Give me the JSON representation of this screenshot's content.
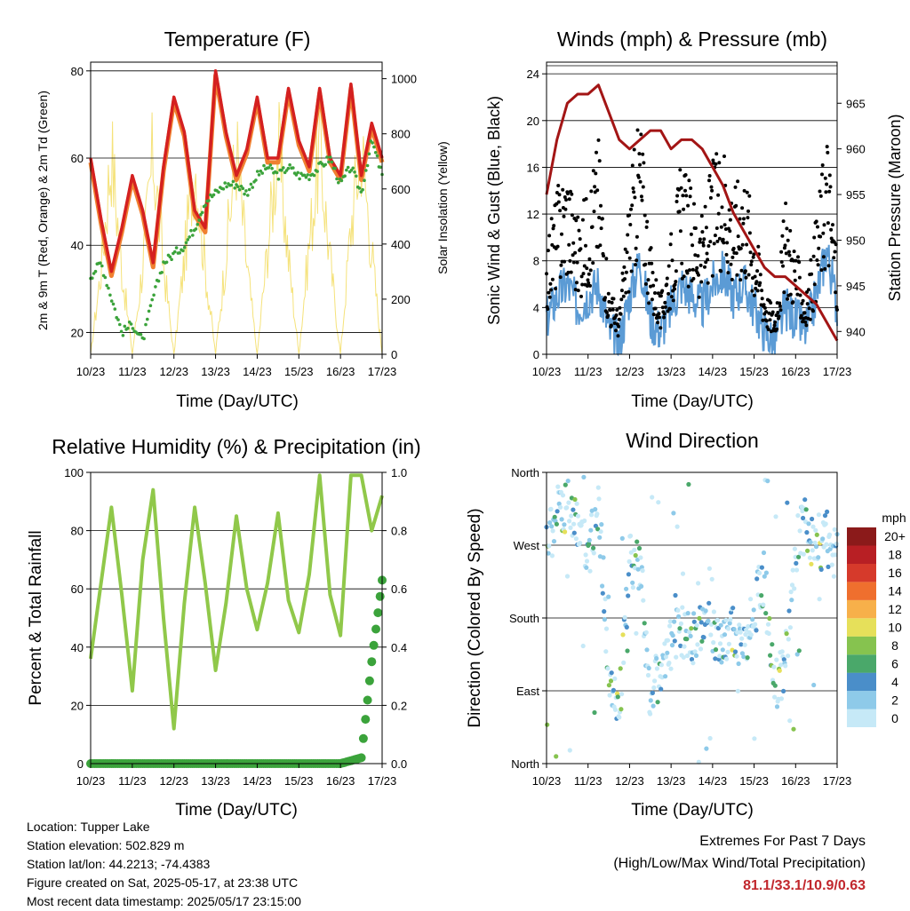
{
  "colors": {
    "t2m": "#d42020",
    "t9m": "#f08030",
    "td": "#3ba33b",
    "solar": "#f5e27a",
    "wind": "#5b9bd5",
    "gust": "#000000",
    "pressure": "#a31515",
    "rh": "#90c84a",
    "precip": "#3ba33b"
  },
  "x_ticks": [
    "10/23",
    "11/23",
    "12/23",
    "13/23",
    "14/23",
    "15/23",
    "16/23",
    "17/23"
  ],
  "temp": {
    "title": "Temperature (F)",
    "ylabel": "2m & 9m T (Red, Orange) & 2m Td (Green)",
    "y2label": "Solar Insolation (Yellow)",
    "xlabel": "Time (Day/UTC)",
    "yticks": [
      20,
      40,
      60,
      80
    ],
    "y2ticks": [
      0,
      200,
      400,
      600,
      800,
      1000
    ]
  },
  "wind": {
    "title": "Winds (mph) & Pressure (mb)",
    "ylabel": "Sonic Wind & Gust (Blue, Black)",
    "y2label": "Station Pressure (Maroon)",
    "xlabel": "Time (Day/UTC)",
    "yticks": [
      0,
      4,
      8,
      12,
      16,
      20,
      24
    ],
    "y2ticks": [
      940,
      945,
      950,
      955,
      960,
      965
    ]
  },
  "rh": {
    "title": "Relative Humidity (%) & Precipitation (in)",
    "ylabel": "Percent & Total Rainfall",
    "xlabel": "Time (Day/UTC)",
    "yticks": [
      0,
      20,
      40,
      60,
      80,
      100
    ],
    "y2ticks": [
      "0.0",
      "0.2",
      "0.4",
      "0.6",
      "0.8",
      "1.0"
    ]
  },
  "dir": {
    "title": "Wind Direction",
    "ylabel": "Direction (Colored By Speed)",
    "xlabel": "Time (Day/UTC)",
    "yticks": [
      "North",
      "East",
      "South",
      "West",
      "North"
    ],
    "legend_title": "mph",
    "legend_labels": [
      "0",
      "2",
      "4",
      "6",
      "8",
      "10",
      "12",
      "14",
      "16",
      "18",
      "20+"
    ],
    "legend_colors": [
      "#c6e9f7",
      "#8ecae9",
      "#4a8ec9",
      "#4aa86a",
      "#86c34f",
      "#e6e05a",
      "#f7b04a",
      "#ef6f2e",
      "#d63a2b",
      "#b81f24",
      "#8b1a1a"
    ]
  },
  "footer": {
    "location": "Location: Tupper Lake",
    "elevation": "Station elevation: 502.829 m",
    "latlon": "Station lat/lon: 44.2213; -74.4383",
    "created": "Figure created on Sat, 2025-05-17, at 23:38 UTC",
    "recent": "Most recent data timestamp: 2025/05/17 23:15:00",
    "extremes_title": "Extremes For Past 7 Days",
    "extremes_sub": "(High/Low/Max Wind/Total Precipitation)",
    "extremes_values": "81.1/33.1/10.9/0.63"
  },
  "chart_data": [
    {
      "type": "line",
      "title": "Temperature (F)",
      "xlabel": "Time (Day/UTC)",
      "ylabel": "2m & 9m T (Red, Orange) & 2m Td (Green)",
      "y2label": "Solar Insolation (Yellow)",
      "xlim": [
        0,
        7
      ],
      "ylim": [
        15,
        82
      ],
      "y2lim": [
        0,
        1060
      ],
      "x": [
        0,
        0.25,
        0.5,
        0.75,
        1,
        1.25,
        1.5,
        1.75,
        2,
        2.25,
        2.5,
        2.75,
        3,
        3.25,
        3.5,
        3.75,
        4,
        4.25,
        4.5,
        4.75,
        5,
        5.25,
        5.5,
        5.75,
        6,
        6.25,
        6.5,
        6.75,
        7
      ],
      "series": [
        {
          "name": "2m T",
          "y": [
            60,
            46,
            34,
            44,
            56,
            48,
            36,
            58,
            74,
            66,
            48,
            44,
            80,
            66,
            56,
            62,
            74,
            60,
            60,
            76,
            64,
            58,
            76,
            60,
            56,
            77,
            56,
            68,
            60
          ]
        },
        {
          "name": "2m Td",
          "y": [
            33,
            36,
            28,
            20,
            22,
            18,
            28,
            36,
            38,
            40,
            44,
            50,
            52,
            54,
            54,
            52,
            56,
            58,
            56,
            58,
            56,
            56,
            58,
            60,
            54,
            58,
            52,
            64,
            56
          ]
        },
        {
          "name": "Solar Insolation",
          "y": [
            0,
            400,
            950,
            400,
            0,
            420,
            940,
            420,
            0,
            440,
            930,
            400,
            0,
            470,
            960,
            420,
            0,
            500,
            980,
            450,
            0,
            520,
            960,
            440,
            0,
            600,
            980,
            480,
            0
          ]
        }
      ]
    },
    {
      "type": "line",
      "title": "Winds (mph) & Pressure (mb)",
      "xlabel": "Time (Day/UTC)",
      "ylabel": "Sonic Wind & Gust (Blue, Black)",
      "y2label": "Station Pressure (Maroon)",
      "xlim": [
        0,
        7
      ],
      "ylim": [
        0,
        25
      ],
      "y2lim": [
        937.5,
        969.5
      ],
      "x": [
        0,
        0.25,
        0.5,
        0.75,
        1,
        1.25,
        1.5,
        1.75,
        2,
        2.25,
        2.5,
        2.75,
        3,
        3.25,
        3.5,
        3.75,
        4,
        4.25,
        4.5,
        4.75,
        5,
        5.25,
        5.5,
        5.75,
        6,
        6.25,
        6.5,
        6.75,
        7
      ],
      "series": [
        {
          "name": "Sonic Wind",
          "y": [
            3,
            5,
            6,
            4,
            5,
            6,
            2,
            1,
            5,
            8,
            3,
            2,
            4,
            6,
            5,
            4,
            6,
            7,
            5,
            6,
            4,
            2,
            1,
            4,
            3,
            2,
            5,
            9,
            4
          ]
        },
        {
          "name": "Gust",
          "y": [
            8,
            12,
            14,
            10,
            12,
            16,
            5,
            3,
            12,
            18,
            8,
            4,
            9,
            14,
            12,
            10,
            14,
            16,
            12,
            14,
            10,
            5,
            3,
            11,
            8,
            4,
            10,
            17,
            7
          ]
        },
        {
          "name": "Station Pressure",
          "y": [
            955,
            961,
            965,
            966,
            966,
            967,
            964,
            961,
            960,
            961,
            962,
            962,
            960,
            961,
            961,
            960,
            958,
            956,
            953,
            951,
            949,
            947,
            946,
            946,
            945,
            944,
            943,
            941,
            939
          ]
        }
      ]
    },
    {
      "type": "line",
      "title": "Relative Humidity (%) & Precipitation (in)",
      "xlabel": "Time (Day/UTC)",
      "ylabel": "Percent & Total Rainfall",
      "xlim": [
        0,
        7
      ],
      "ylim": [
        0,
        100
      ],
      "y2lim": [
        0,
        1.0
      ],
      "x": [
        0,
        0.25,
        0.5,
        0.75,
        1,
        1.25,
        1.5,
        1.75,
        2,
        2.25,
        2.5,
        2.75,
        3,
        3.25,
        3.5,
        3.75,
        4,
        4.25,
        4.5,
        4.75,
        5,
        5.25,
        5.5,
        5.75,
        6,
        6.25,
        6.5,
        6.75,
        7
      ],
      "series": [
        {
          "name": "Relative Humidity",
          "y": [
            36,
            62,
            88,
            58,
            25,
            70,
            94,
            50,
            12,
            55,
            88,
            62,
            32,
            55,
            85,
            60,
            46,
            62,
            86,
            56,
            45,
            65,
            99,
            58,
            44,
            99,
            99,
            80,
            92
          ]
        },
        {
          "name": "Total Precipitation",
          "y": [
            0,
            0,
            0,
            0,
            0,
            0,
            0,
            0,
            0,
            0,
            0,
            0,
            0,
            0,
            0,
            0,
            0,
            0,
            0,
            0,
            0,
            0,
            0,
            0,
            0,
            0.01,
            0.02,
            0.35,
            0.63
          ]
        }
      ]
    },
    {
      "type": "scatter",
      "title": "Wind Direction",
      "xlabel": "Time (Day/UTC)",
      "ylabel": "Direction (Colored By Speed)",
      "xlim": [
        0,
        7
      ],
      "ylim": [
        0,
        360
      ],
      "x": [
        0,
        0.25,
        0.5,
        0.75,
        1,
        1.25,
        1.5,
        1.75,
        2,
        2.25,
        2.5,
        2.75,
        3,
        3.25,
        3.5,
        3.75,
        4,
        4.25,
        4.5,
        4.75,
        5,
        5.25,
        5.5,
        5.75,
        6,
        6.25,
        6.5,
        6.75,
        7
      ],
      "series": [
        {
          "name": "Direction",
          "y": [
            270,
            310,
            320,
            300,
            250,
            330,
            100,
            60,
            250,
            240,
            80,
            120,
            150,
            160,
            150,
            170,
            160,
            150,
            170,
            140,
            190,
            230,
            90,
            120,
            270,
            300,
            250,
            280,
            250
          ]
        }
      ]
    }
  ]
}
